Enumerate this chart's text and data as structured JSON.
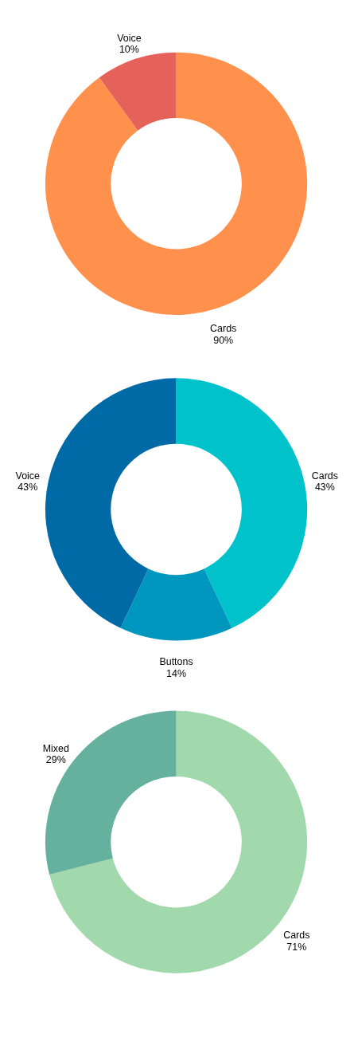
{
  "chart_data": [
    {
      "type": "donut",
      "categories": [
        "Cards",
        "Voice"
      ],
      "values": [
        90,
        10
      ],
      "value_labels": [
        "90%",
        "10%"
      ],
      "colors": [
        "#ff914d",
        "#e5625a"
      ]
    },
    {
      "type": "donut",
      "categories": [
        "Cards",
        "Buttons",
        "Voice"
      ],
      "values": [
        43,
        14,
        43
      ],
      "value_labels": [
        "43%",
        "14%",
        "43%"
      ],
      "colors": [
        "#00c2cb",
        "#0097be",
        "#006aa6"
      ]
    },
    {
      "type": "donut",
      "categories": [
        "Cards",
        "Mixed"
      ],
      "values": [
        71,
        29
      ],
      "value_labels": [
        "71%",
        "29%"
      ],
      "colors": [
        "#a1d9ac",
        "#65b19d"
      ]
    }
  ]
}
